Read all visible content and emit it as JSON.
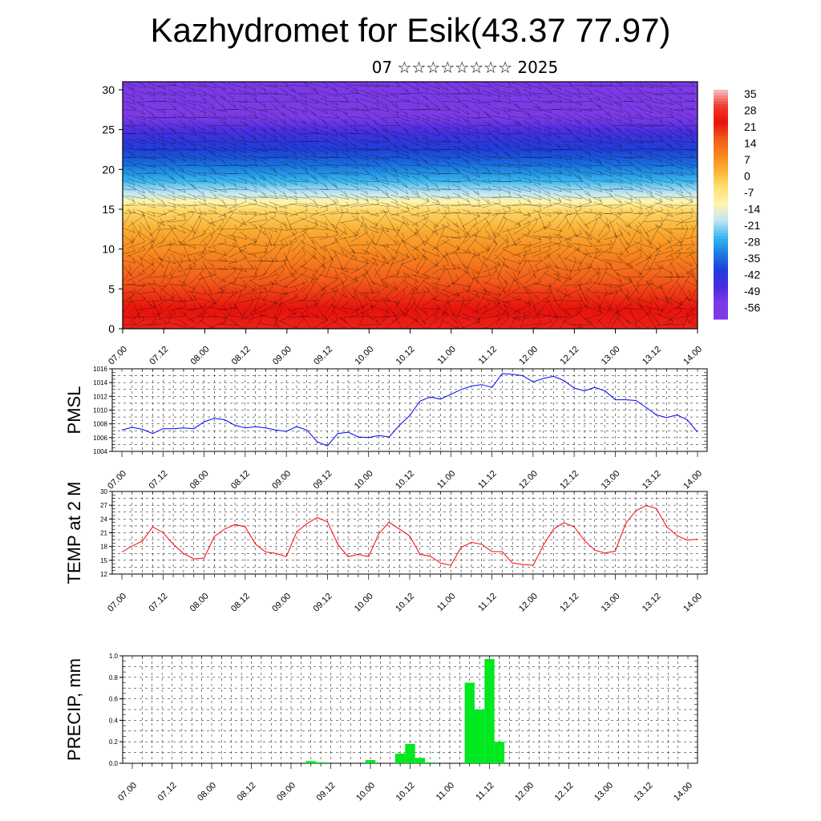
{
  "header": {
    "title": "Kazhydromet for Esik(43.37 77.97)",
    "subtitle": "07 ☆☆☆☆☆☆☆☆ 2025"
  },
  "time_ticks": [
    "07.00",
    "07.12",
    "08.00",
    "08.12",
    "09.00",
    "09.12",
    "10.00",
    "10.12",
    "11.00",
    "11.12",
    "12.00",
    "12.12",
    "13.00",
    "13.12",
    "14.00"
  ],
  "chart_data": [
    {
      "type": "heatmap",
      "title": "",
      "ylim": [
        0,
        31
      ],
      "y_ticks": [
        0,
        5,
        10,
        15,
        20,
        25,
        30
      ],
      "colorbar": {
        "labels": [
          "35",
          "28",
          "21",
          "14",
          "7",
          "0",
          "-7",
          "-14",
          "-21",
          "-28",
          "-35",
          "-42",
          "-49",
          "-56"
        ],
        "colors": [
          "#f4c2c2",
          "#ef3b2c",
          "#e8120c",
          "#f25a1a",
          "#f7881f",
          "#fbb437",
          "#fde275",
          "#fff5b0",
          "#bfe6f5",
          "#38b6f0",
          "#1a7de0",
          "#1f3fd8",
          "#4a2ce0",
          "#7b3ae6"
        ]
      },
      "temperature_profile": [
        {
          "level": 0,
          "temp": 24
        },
        {
          "level": 3,
          "temp": 20
        },
        {
          "level": 6,
          "temp": 14
        },
        {
          "level": 9,
          "temp": 8
        },
        {
          "level": 12,
          "temp": 2
        },
        {
          "level": 15,
          "temp": -6
        },
        {
          "level": 16.5,
          "temp": -18
        },
        {
          "level": 19,
          "temp": -30
        },
        {
          "level": 21,
          "temp": -38
        },
        {
          "level": 24,
          "temp": -46
        },
        {
          "level": 25,
          "temp": -50
        },
        {
          "level": 27,
          "temp": -58
        },
        {
          "level": 31,
          "temp": -62
        }
      ]
    },
    {
      "type": "line",
      "ylabel": "PMSL",
      "ylim": [
        1004,
        1016
      ],
      "y_ticks": [
        "1004",
        "1006",
        "1008",
        "1010",
        "1012",
        "1014",
        "1016"
      ],
      "color": "#0000ff",
      "x": [
        0,
        3,
        6,
        9,
        12,
        15,
        18,
        21,
        24,
        27,
        30,
        33,
        36,
        39,
        42,
        45,
        48,
        51,
        54,
        57,
        60,
        63,
        66,
        69,
        72,
        75,
        78,
        81,
        84,
        87,
        90,
        93,
        96,
        99,
        102,
        105,
        108,
        111,
        114,
        117,
        120,
        123,
        126,
        129,
        132,
        135,
        138,
        141,
        144,
        147,
        150,
        153,
        156,
        159,
        162,
        165,
        168
      ],
      "values": [
        1007.1,
        1007.5,
        1007.2,
        1006.6,
        1007.3,
        1007.3,
        1007.4,
        1007.3,
        1008.3,
        1008.8,
        1008.6,
        1007.8,
        1007.4,
        1007.6,
        1007.4,
        1007.1,
        1006.9,
        1007.6,
        1007.1,
        1005.4,
        1004.8,
        1006.6,
        1006.8,
        1006.1,
        1006.0,
        1006.3,
        1006.1,
        1007.8,
        1009.2,
        1011.3,
        1011.9,
        1011.6,
        1012.3,
        1013.0,
        1013.5,
        1013.7,
        1013.3,
        1015.3,
        1015.2,
        1015.0,
        1014.1,
        1014.6,
        1014.9,
        1014.3,
        1013.2,
        1012.8,
        1013.3,
        1012.8,
        1011.5,
        1011.5,
        1011.4,
        1010.4,
        1009.3,
        1008.9,
        1009.3,
        1008.6,
        1006.8
      ]
    },
    {
      "type": "line",
      "ylabel": "TEMP at 2 M",
      "ylim": [
        12,
        30
      ],
      "y_ticks": [
        "12",
        "15",
        "18",
        "21",
        "24",
        "27",
        "30"
      ],
      "color": "#ff0000",
      "x": [
        0,
        3,
        6,
        9,
        12,
        15,
        18,
        21,
        24,
        27,
        30,
        33,
        36,
        39,
        42,
        45,
        48,
        51,
        54,
        57,
        60,
        63,
        66,
        69,
        72,
        75,
        78,
        81,
        84,
        87,
        90,
        93,
        96,
        99,
        102,
        105,
        108,
        111,
        114,
        117,
        120,
        123,
        126,
        129,
        132,
        135,
        138,
        141,
        144,
        147,
        150,
        153,
        156,
        159,
        162,
        165,
        168
      ],
      "values": [
        16.8,
        18.1,
        19.2,
        22.3,
        21.0,
        18.5,
        16.5,
        15.3,
        15.5,
        20.2,
        21.8,
        22.8,
        22.3,
        18.5,
        16.8,
        16.5,
        15.8,
        21.2,
        23.0,
        24.3,
        23.4,
        18.5,
        15.8,
        16.3,
        15.8,
        20.8,
        23.3,
        21.8,
        20.3,
        16.3,
        15.9,
        14.4,
        13.9,
        17.8,
        18.9,
        18.5,
        16.9,
        16.9,
        14.4,
        14.1,
        13.9,
        18.3,
        21.8,
        23.2,
        22.3,
        19.3,
        17.2,
        16.6,
        17.0,
        23.0,
        25.8,
        26.9,
        26.3,
        22.3,
        20.4,
        19.4,
        19.6
      ]
    },
    {
      "type": "bar",
      "ylabel": "PRECIP, mm",
      "ylim": [
        0,
        1.0
      ],
      "y_ticks": [
        "0.0",
        "0.2",
        "0.4",
        "0.6",
        "0.8",
        "1.0"
      ],
      "color": "#00e81f",
      "x": [
        54,
        57,
        72,
        81,
        84,
        87,
        90,
        102,
        105,
        108,
        111
      ],
      "values": [
        0.02,
        0.01,
        0.03,
        0.09,
        0.18,
        0.05,
        0.01,
        0.75,
        0.5,
        0.97,
        0.2
      ]
    }
  ]
}
